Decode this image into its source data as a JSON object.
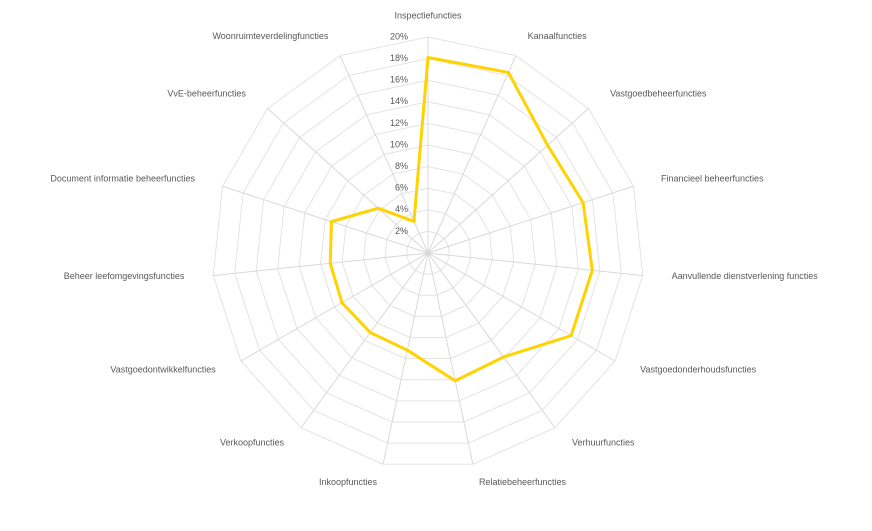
{
  "chart_data": {
    "type": "radar",
    "categories": [
      "Inspectiefuncties",
      "Kanaalfuncties",
      "Vastgoedbeheerfuncties",
      "Financieel beheerfuncties",
      "Aanvullende dienstverlening functies",
      "Vastgoedonderhoudsfuncties",
      "Verhuurfuncties",
      "Relatiebeheerfuncties",
      "Inkoopfuncties",
      "Verkoopfuncties",
      "Vastgoedontwikkelfuncties",
      "Beheer leefomgevingsfuncties",
      "Document informatie beheerfuncties",
      "VvE-beheerfuncties",
      "Woonruimteverdelingfuncties"
    ],
    "values": [
      18.1,
      18.3,
      14.9,
      15.1,
      15.3,
      15.3,
      11.9,
      12.1,
      9.2,
      9.1,
      9.2,
      9.1,
      9.4,
      6.2,
      3.2
    ],
    "color": "#ffd200",
    "ylim": [
      0,
      20
    ],
    "yticks": [
      {
        "value": 2,
        "label": "2%"
      },
      {
        "value": 4,
        "label": "4%"
      },
      {
        "value": 6,
        "label": "6%"
      },
      {
        "value": 8,
        "label": "8%"
      },
      {
        "value": 10,
        "label": "10%"
      },
      {
        "value": 12,
        "label": "12%"
      },
      {
        "value": 14,
        "label": "14%"
      },
      {
        "value": 16,
        "label": "16%"
      },
      {
        "value": 18,
        "label": "18%"
      },
      {
        "value": 20,
        "label": "20%"
      }
    ],
    "grid": true
  }
}
